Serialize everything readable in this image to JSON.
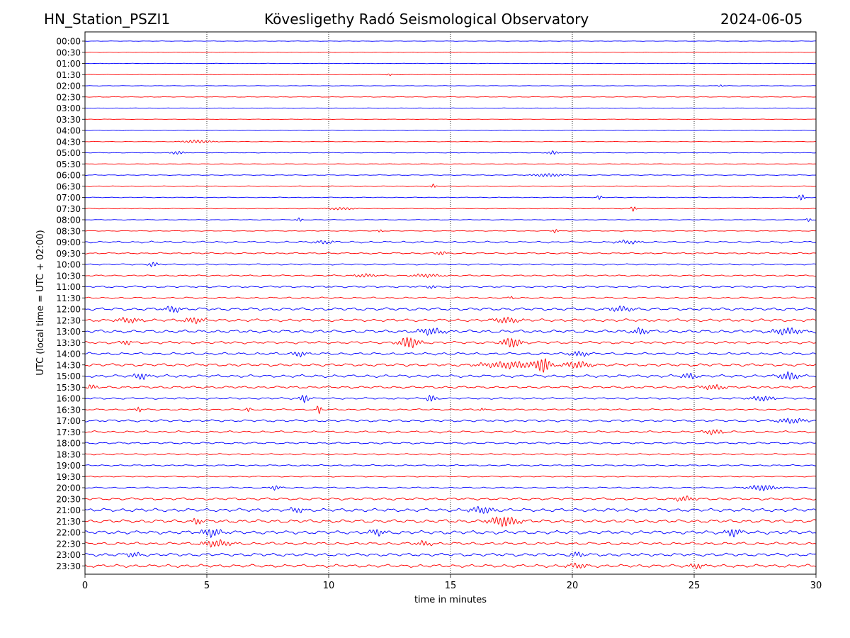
{
  "header": {
    "station": "HN_Station_PSZI1",
    "observatory": "Kövesligethy Radó Seismological Observatory",
    "date": "2024-06-05"
  },
  "chart_data": {
    "type": "line",
    "title": "Kövesligethy Radó Seismological Observatory",
    "xlabel": "time in minutes",
    "ylabel": "UTC (local time = UTC + 02:00)",
    "xlim": [
      0,
      30
    ],
    "x_ticks": [
      0,
      5,
      10,
      15,
      20,
      25,
      30
    ],
    "vertical_grid_at": [
      5,
      10,
      15,
      20,
      25
    ],
    "grid": "dotted vertical",
    "colors": {
      "even_rows": "#0000ff",
      "odd_rows": "#ff0000"
    },
    "rows": [
      {
        "label": "00:00",
        "amp": 0.3,
        "events": []
      },
      {
        "label": "00:30",
        "amp": 0.3,
        "events": []
      },
      {
        "label": "01:00",
        "amp": 0.3,
        "events": []
      },
      {
        "label": "01:30",
        "amp": 0.3,
        "events": [
          {
            "t": 12.5,
            "a": 1.5,
            "d": 0.1
          }
        ]
      },
      {
        "label": "02:00",
        "amp": 0.3,
        "events": [
          {
            "t": 26.1,
            "a": 1.5,
            "d": 0.1
          }
        ]
      },
      {
        "label": "02:30",
        "amp": 0.4,
        "events": []
      },
      {
        "label": "03:00",
        "amp": 0.3,
        "events": []
      },
      {
        "label": "03:30",
        "amp": 0.3,
        "events": []
      },
      {
        "label": "04:00",
        "amp": 0.3,
        "events": []
      },
      {
        "label": "04:30",
        "amp": 0.4,
        "events": [
          {
            "t": 4.6,
            "a": 2,
            "d": 0.6
          }
        ]
      },
      {
        "label": "05:00",
        "amp": 0.4,
        "events": [
          {
            "t": 3.8,
            "a": 2,
            "d": 0.3
          },
          {
            "t": 19.2,
            "a": 2.5,
            "d": 0.2
          }
        ]
      },
      {
        "label": "05:30",
        "amp": 0.3,
        "events": []
      },
      {
        "label": "06:00",
        "amp": 0.5,
        "events": [
          {
            "t": 19,
            "a": 2,
            "d": 0.6
          }
        ]
      },
      {
        "label": "06:30",
        "amp": 0.6,
        "events": [
          {
            "t": 14.3,
            "a": 3,
            "d": 0.1
          }
        ]
      },
      {
        "label": "07:00",
        "amp": 0.5,
        "events": [
          {
            "t": 21.1,
            "a": 3,
            "d": 0.1
          },
          {
            "t": 29.4,
            "a": 4,
            "d": 0.15
          }
        ]
      },
      {
        "label": "07:30",
        "amp": 0.5,
        "events": [
          {
            "t": 10.5,
            "a": 1.5,
            "d": 0.6
          },
          {
            "t": 22.5,
            "a": 4,
            "d": 0.1
          }
        ]
      },
      {
        "label": "08:00",
        "amp": 0.4,
        "events": [
          {
            "t": 8.8,
            "a": 3,
            "d": 0.1
          },
          {
            "t": 29.7,
            "a": 2.5,
            "d": 0.1
          }
        ]
      },
      {
        "label": "08:30",
        "amp": 0.5,
        "events": [
          {
            "t": 12.1,
            "a": 2,
            "d": 0.1
          },
          {
            "t": 19.3,
            "a": 3,
            "d": 0.1
          }
        ]
      },
      {
        "label": "09:00",
        "amp": 1.4,
        "events": [
          {
            "t": 9.8,
            "a": 2,
            "d": 0.4
          },
          {
            "t": 22.3,
            "a": 2,
            "d": 0.5
          }
        ]
      },
      {
        "label": "09:30",
        "amp": 1.0,
        "events": [
          {
            "t": 14.6,
            "a": 2.5,
            "d": 0.2
          }
        ]
      },
      {
        "label": "10:00",
        "amp": 1.0,
        "events": [
          {
            "t": 2.8,
            "a": 3,
            "d": 0.2
          }
        ]
      },
      {
        "label": "10:30",
        "amp": 1.0,
        "events": [
          {
            "t": 11.5,
            "a": 2,
            "d": 0.5
          },
          {
            "t": 14,
            "a": 2,
            "d": 0.6
          }
        ]
      },
      {
        "label": "11:00",
        "amp": 1.3,
        "events": [
          {
            "t": 14.2,
            "a": 2,
            "d": 0.2
          }
        ]
      },
      {
        "label": "11:30",
        "amp": 1.2,
        "events": [
          {
            "t": 17.5,
            "a": 2,
            "d": 0.1
          }
        ]
      },
      {
        "label": "12:00",
        "amp": 2.0,
        "events": [
          {
            "t": 3.6,
            "a": 4,
            "d": 0.3
          },
          {
            "t": 22,
            "a": 3,
            "d": 0.5
          }
        ]
      },
      {
        "label": "12:30",
        "amp": 2.0,
        "events": [
          {
            "t": 1.8,
            "a": 3,
            "d": 0.5
          },
          {
            "t": 4.5,
            "a": 3.5,
            "d": 0.4
          },
          {
            "t": 17.3,
            "a": 3.5,
            "d": 0.5
          }
        ]
      },
      {
        "label": "13:00",
        "amp": 2.2,
        "events": [
          {
            "t": 14.2,
            "a": 4,
            "d": 0.5
          },
          {
            "t": 22.8,
            "a": 4,
            "d": 0.3
          },
          {
            "t": 28.8,
            "a": 4,
            "d": 0.6
          }
        ]
      },
      {
        "label": "13:30",
        "amp": 1.8,
        "events": [
          {
            "t": 13.3,
            "a": 7,
            "d": 0.4
          },
          {
            "t": 17.5,
            "a": 6,
            "d": 0.4
          },
          {
            "t": 1.7,
            "a": 3,
            "d": 0.2
          }
        ]
      },
      {
        "label": "14:00",
        "amp": 1.8,
        "events": [
          {
            "t": 8.8,
            "a": 3,
            "d": 0.3
          },
          {
            "t": 20.3,
            "a": 3,
            "d": 0.4
          }
        ]
      },
      {
        "label": "14:30",
        "amp": 2.0,
        "events": [
          {
            "t": 17.5,
            "a": 4,
            "d": 1.2
          },
          {
            "t": 18.8,
            "a": 9,
            "d": 0.3
          },
          {
            "t": 20.2,
            "a": 4,
            "d": 0.6
          }
        ]
      },
      {
        "label": "15:00",
        "amp": 2.0,
        "events": [
          {
            "t": 2.3,
            "a": 4,
            "d": 0.3
          },
          {
            "t": 24.8,
            "a": 3.5,
            "d": 0.3
          },
          {
            "t": 28.9,
            "a": 5,
            "d": 0.4
          }
        ]
      },
      {
        "label": "15:30",
        "amp": 1.6,
        "events": [
          {
            "t": 0.3,
            "a": 3,
            "d": 0.2
          },
          {
            "t": 25.8,
            "a": 3,
            "d": 0.5
          }
        ]
      },
      {
        "label": "16:00",
        "amp": 1.3,
        "events": [
          {
            "t": 9,
            "a": 5,
            "d": 0.2
          },
          {
            "t": 14.2,
            "a": 4.5,
            "d": 0.2
          },
          {
            "t": 27.8,
            "a": 3,
            "d": 0.5
          }
        ]
      },
      {
        "label": "16:30",
        "amp": 1.1,
        "events": [
          {
            "t": 2.2,
            "a": 4,
            "d": 0.1
          },
          {
            "t": 6.7,
            "a": 3,
            "d": 0.1
          },
          {
            "t": 9.6,
            "a": 6,
            "d": 0.1
          },
          {
            "t": 16.3,
            "a": 2,
            "d": 0.1
          }
        ]
      },
      {
        "label": "17:00",
        "amp": 1.6,
        "events": [
          {
            "t": 29,
            "a": 3,
            "d": 0.6
          }
        ]
      },
      {
        "label": "17:30",
        "amp": 1.6,
        "events": [
          {
            "t": 25.8,
            "a": 3,
            "d": 0.4
          }
        ]
      },
      {
        "label": "18:00",
        "amp": 1.3,
        "events": []
      },
      {
        "label": "18:30",
        "amp": 1.1,
        "events": []
      },
      {
        "label": "19:00",
        "amp": 1.0,
        "events": []
      },
      {
        "label": "19:30",
        "amp": 0.8,
        "events": []
      },
      {
        "label": "20:00",
        "amp": 1.0,
        "events": [
          {
            "t": 7.8,
            "a": 3,
            "d": 0.2
          },
          {
            "t": 27.8,
            "a": 3.5,
            "d": 0.6
          }
        ]
      },
      {
        "label": "20:30",
        "amp": 1.7,
        "events": [
          {
            "t": 24.6,
            "a": 3,
            "d": 0.4
          }
        ]
      },
      {
        "label": "21:00",
        "amp": 2.4,
        "events": [
          {
            "t": 8.7,
            "a": 3,
            "d": 0.3
          },
          {
            "t": 16.3,
            "a": 4,
            "d": 0.5
          }
        ]
      },
      {
        "label": "21:30",
        "amp": 2.4,
        "events": [
          {
            "t": 4.6,
            "a": 4,
            "d": 0.2
          },
          {
            "t": 17.2,
            "a": 6,
            "d": 0.6
          }
        ]
      },
      {
        "label": "22:00",
        "amp": 2.5,
        "events": [
          {
            "t": 5.2,
            "a": 5,
            "d": 0.4
          },
          {
            "t": 12,
            "a": 4,
            "d": 0.3
          },
          {
            "t": 26.6,
            "a": 5,
            "d": 0.3
          }
        ]
      },
      {
        "label": "22:30",
        "amp": 2.0,
        "events": [
          {
            "t": 5.4,
            "a": 4,
            "d": 0.6
          },
          {
            "t": 13.9,
            "a": 3,
            "d": 0.3
          }
        ]
      },
      {
        "label": "23:00",
        "amp": 2.2,
        "events": [
          {
            "t": 2,
            "a": 3,
            "d": 0.3
          },
          {
            "t": 20.2,
            "a": 3,
            "d": 0.3
          }
        ]
      },
      {
        "label": "23:30",
        "amp": 2.2,
        "events": [
          {
            "t": 20.2,
            "a": 3,
            "d": 0.4
          },
          {
            "t": 25.1,
            "a": 3,
            "d": 0.3
          }
        ]
      }
    ]
  }
}
